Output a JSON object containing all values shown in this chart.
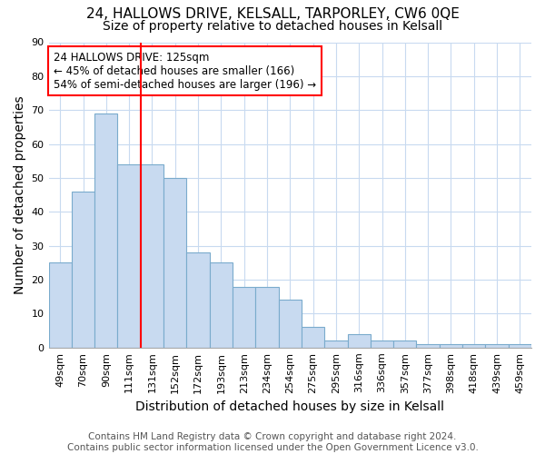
{
  "title": "24, HALLOWS DRIVE, KELSALL, TARPORLEY, CW6 0QE",
  "subtitle": "Size of property relative to detached houses in Kelsall",
  "xlabel": "Distribution of detached houses by size in Kelsall",
  "ylabel": "Number of detached properties",
  "categories": [
    "49sqm",
    "70sqm",
    "90sqm",
    "111sqm",
    "131sqm",
    "152sqm",
    "172sqm",
    "193sqm",
    "213sqm",
    "234sqm",
    "254sqm",
    "275sqm",
    "295sqm",
    "316sqm",
    "336sqm",
    "357sqm",
    "377sqm",
    "398sqm",
    "418sqm",
    "439sqm",
    "459sqm"
  ],
  "values": [
    25,
    46,
    69,
    54,
    54,
    50,
    28,
    25,
    18,
    18,
    14,
    6,
    2,
    4,
    2,
    2,
    1,
    1,
    1,
    1,
    1
  ],
  "bar_color": "#c8daf0",
  "bar_edge_color": "#7aabcc",
  "vline_index": 4,
  "vline_color": "red",
  "annotation_line1": "24 HALLOWS DRIVE: 125sqm",
  "annotation_line2": "← 45% of detached houses are smaller (166)",
  "annotation_line3": "54% of semi-detached houses are larger (196) →",
  "annotation_box_color": "white",
  "annotation_box_edgecolor": "red",
  "ylim": [
    0,
    90
  ],
  "yticks": [
    0,
    10,
    20,
    30,
    40,
    50,
    60,
    70,
    80,
    90
  ],
  "footer_line1": "Contains HM Land Registry data © Crown copyright and database right 2024.",
  "footer_line2": "Contains public sector information licensed under the Open Government Licence v3.0.",
  "background_color": "white",
  "grid_color": "#c8daf0",
  "title_fontsize": 11,
  "subtitle_fontsize": 10,
  "axis_label_fontsize": 10,
  "tick_fontsize": 8,
  "annotation_fontsize": 8.5,
  "footer_fontsize": 7.5
}
